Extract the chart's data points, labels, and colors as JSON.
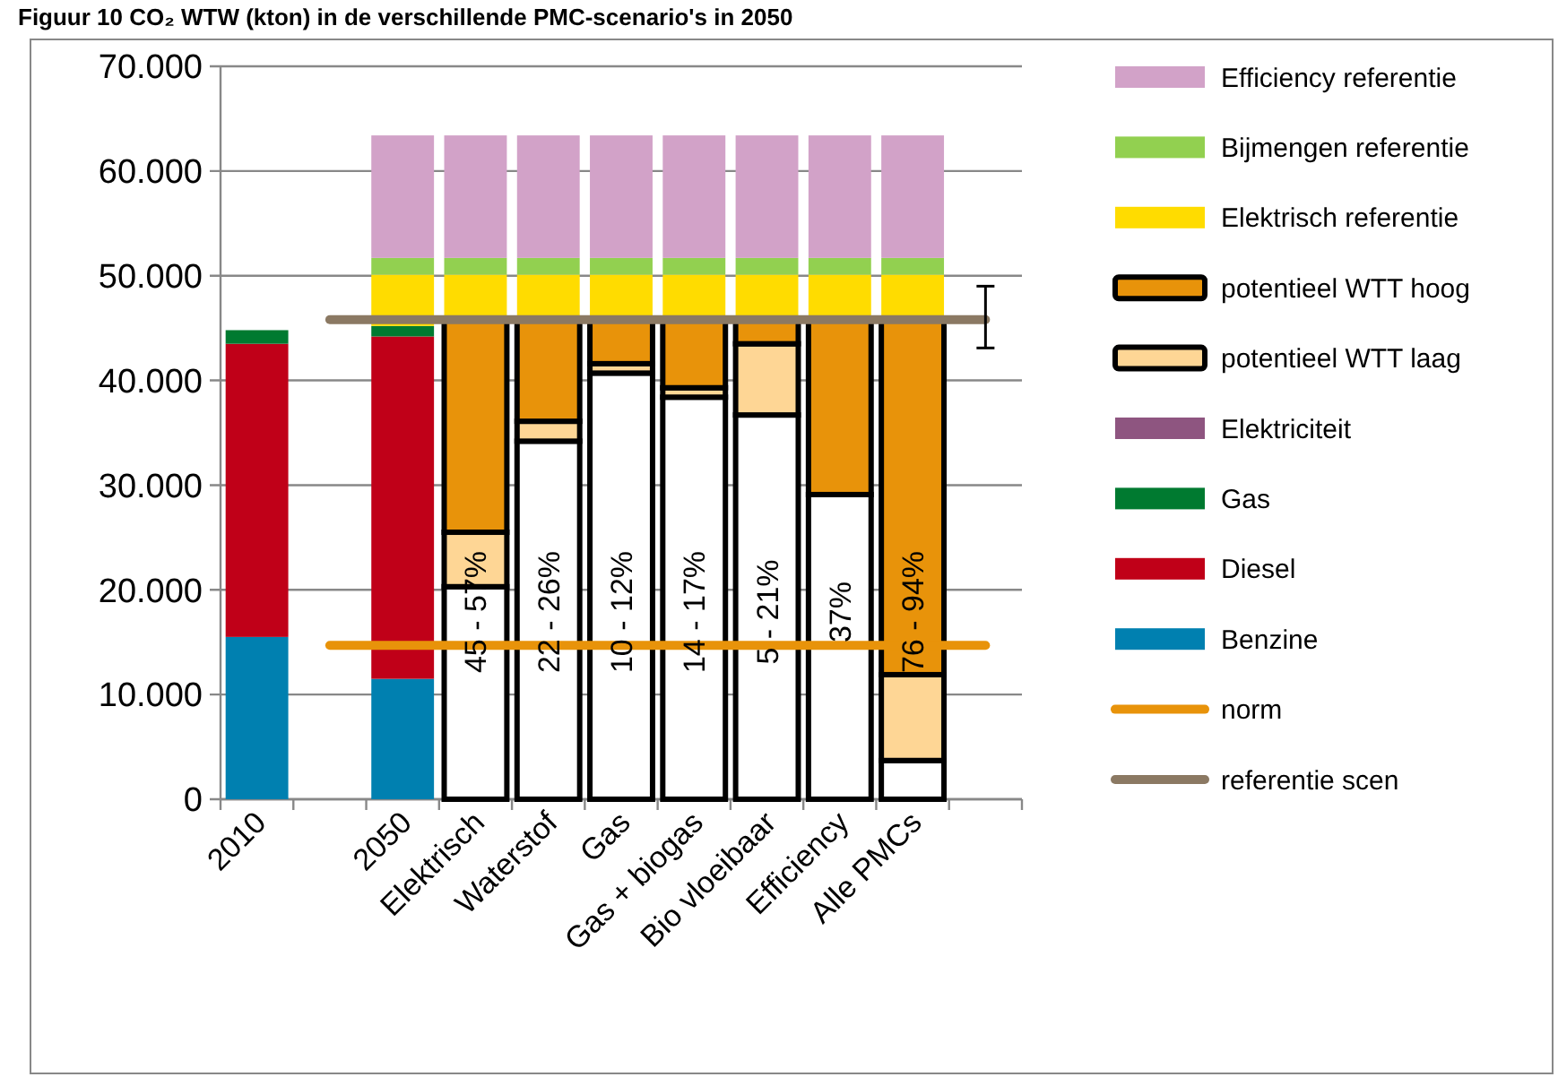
{
  "chart_data": {
    "type": "bar",
    "stacked": true,
    "title": "Figuur 10 CO₂ WTW (kton) in de verschillende PMC-scenario's in 2050",
    "categories": [
      "2010",
      null,
      "2050",
      "Elektrisch",
      "Waterstof",
      "Gas",
      "Gas + biogas",
      "Bio vloeibaar",
      "Efficiency",
      "Alle PMCs",
      null
    ],
    "series": [
      {
        "name": "Benzine",
        "color": "#0080b0",
        "values": [
          15500,
          null,
          11500,
          null,
          null,
          null,
          null,
          null,
          null,
          null,
          null
        ]
      },
      {
        "name": "Diesel",
        "color": "#c00018",
        "values": [
          28000,
          null,
          32700,
          null,
          null,
          null,
          null,
          null,
          null,
          null,
          null
        ]
      },
      {
        "name": "Gas",
        "color": "#007a30",
        "values": [
          1300,
          null,
          1000,
          null,
          null,
          null,
          null,
          null,
          null,
          null,
          null
        ]
      },
      {
        "name": "Elektriciteit",
        "color": "#8e5580",
        "values": [
          0,
          null,
          0,
          null,
          null,
          null,
          null,
          null,
          null,
          null,
          null
        ]
      },
      {
        "color": "#ffffff",
        "values": [
          null,
          null,
          null,
          20300,
          34200,
          40700,
          38400,
          36700,
          29100,
          3700,
          null
        ]
      },
      {
        "name": "potentieel WTT laag",
        "color": "#fed695",
        "values": [
          null,
          null,
          null,
          5200,
          1900,
          900,
          900,
          6800,
          0,
          8200,
          null
        ]
      },
      {
        "name": "potentieel WTT hoog",
        "color": "#e8930a",
        "values": [
          null,
          null,
          null,
          20300,
          9700,
          4200,
          6500,
          2300,
          16700,
          33900,
          null
        ]
      },
      {
        "name": "Elektrisch referentie",
        "color": "#ffdc00",
        "values": [
          null,
          null,
          4900,
          4300,
          4300,
          4300,
          4300,
          4300,
          4300,
          4300,
          null
        ]
      },
      {
        "name": "Bijmengen referentie",
        "color": "#92d050",
        "values": [
          null,
          null,
          1600,
          1600,
          1600,
          1600,
          1600,
          1600,
          1600,
          1600,
          null
        ]
      },
      {
        "name": "Efficiency referentie",
        "color": "#d2a2c8",
        "values": [
          null,
          null,
          11700,
          11700,
          11700,
          11700,
          11700,
          11700,
          11700,
          11700,
          null
        ]
      },
      {
        "name": "norm",
        "type": "line",
        "color": "#e8930a",
        "values": [
          null,
          14700,
          14700,
          14700,
          14700,
          14700,
          14700,
          14700,
          14700,
          14700,
          14700
        ]
      },
      {
        "name": "referentie scen",
        "type": "line",
        "color": "#8b7963",
        "values": [
          null,
          45800,
          45800,
          45800,
          45800,
          45800,
          45800,
          45800,
          45800,
          45800,
          45800
        ],
        "errors": [
          null,
          null,
          null,
          null,
          null,
          null,
          null,
          null,
          null,
          null,
          [
            43100,
            49000
          ]
        ]
      }
    ],
    "ylim": [
      0,
      70000
    ],
    "yticks": [
      {
        "value": 0,
        "label": "0"
      },
      {
        "value": 10000,
        "label": "10.000"
      },
      {
        "value": 20000,
        "label": "20.000"
      },
      {
        "value": 30000,
        "label": "30.000"
      },
      {
        "value": 40000,
        "label": "40.000"
      },
      {
        "value": 50000,
        "label": "50.000"
      },
      {
        "value": 60000,
        "label": "60.000"
      },
      {
        "value": 70000,
        "label": "70.000"
      }
    ],
    "annotations": [
      "45 - 57%",
      "22 - 26%",
      "10 - 12%",
      "14 - 17%",
      "5 - 21%",
      "37%",
      "76 - 94%"
    ],
    "grid": "y",
    "legend": "right"
  }
}
